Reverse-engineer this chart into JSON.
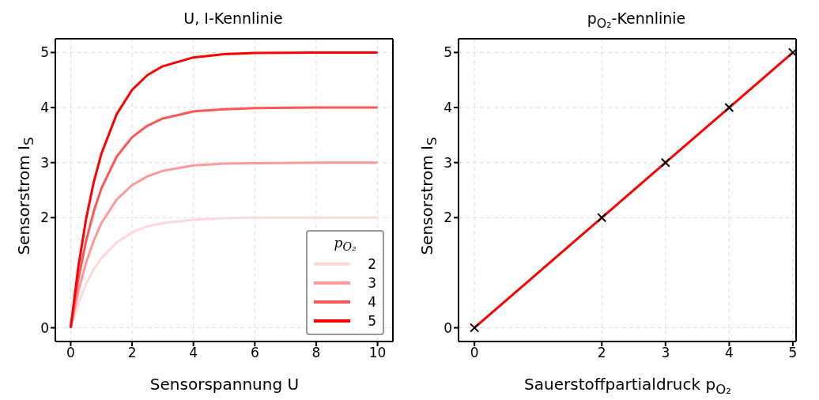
{
  "chart_data": [
    {
      "type": "line",
      "title": "U, I-Kennlinie",
      "xlabel": "Sensorspannung U",
      "ylabel": "Sensorstrom I$_{S}$",
      "legend_title": "p$_{O₂}$",
      "legend": "bottom right",
      "grid": true,
      "x": [
        0,
        0.25,
        0.5,
        0.75,
        1,
        1.5,
        2,
        2.5,
        3,
        4,
        5,
        6,
        8,
        10
      ],
      "series": [
        {
          "name": "2",
          "color": "#ffd9d9",
          "values": [
            0,
            0.44,
            0.79,
            1.06,
            1.26,
            1.55,
            1.73,
            1.84,
            1.9,
            1.96,
            1.99,
            2,
            2,
            2
          ]
        },
        {
          "name": "3",
          "color": "#ff9999",
          "values": [
            0,
            0.66,
            1.18,
            1.58,
            1.9,
            2.33,
            2.59,
            2.75,
            2.85,
            2.95,
            2.98,
            2.99,
            3,
            3
          ]
        },
        {
          "name": "4",
          "color": "#ff5555",
          "values": [
            0,
            0.88,
            1.57,
            2.11,
            2.53,
            3.11,
            3.46,
            3.67,
            3.8,
            3.93,
            3.97,
            3.99,
            4,
            4
          ]
        },
        {
          "name": "5",
          "color": "#ff0000",
          "values": [
            0,
            1.11,
            1.97,
            2.64,
            3.16,
            3.88,
            4.32,
            4.59,
            4.75,
            4.91,
            4.97,
            4.99,
            5,
            5
          ]
        }
      ],
      "xlim": [
        -0.5,
        10.5
      ],
      "xticks": [
        0,
        2,
        4,
        6,
        8,
        10
      ],
      "ylim": [
        -0.25,
        5.25
      ],
      "yticks": [
        0,
        2,
        3,
        4,
        5
      ]
    },
    {
      "type": "line",
      "title": "p$_{O₂}$-Kennlinie",
      "xlabel": "Sauerstoffpartialdruck p$_{O₂}$",
      "ylabel": "Sensorstrom I$_{S}$",
      "grid": true,
      "marker": "cross",
      "x": [
        0,
        2,
        3,
        4,
        5
      ],
      "series": [
        {
          "color": "#ff0000",
          "values": [
            0,
            2,
            3,
            4,
            5
          ]
        }
      ],
      "xlim": [
        -0.25,
        5.05
      ],
      "xticks": [
        0,
        2,
        3,
        4,
        5
      ],
      "ylim": [
        -0.25,
        5.25
      ],
      "yticks": [
        0,
        2,
        3,
        4,
        5
      ]
    }
  ]
}
